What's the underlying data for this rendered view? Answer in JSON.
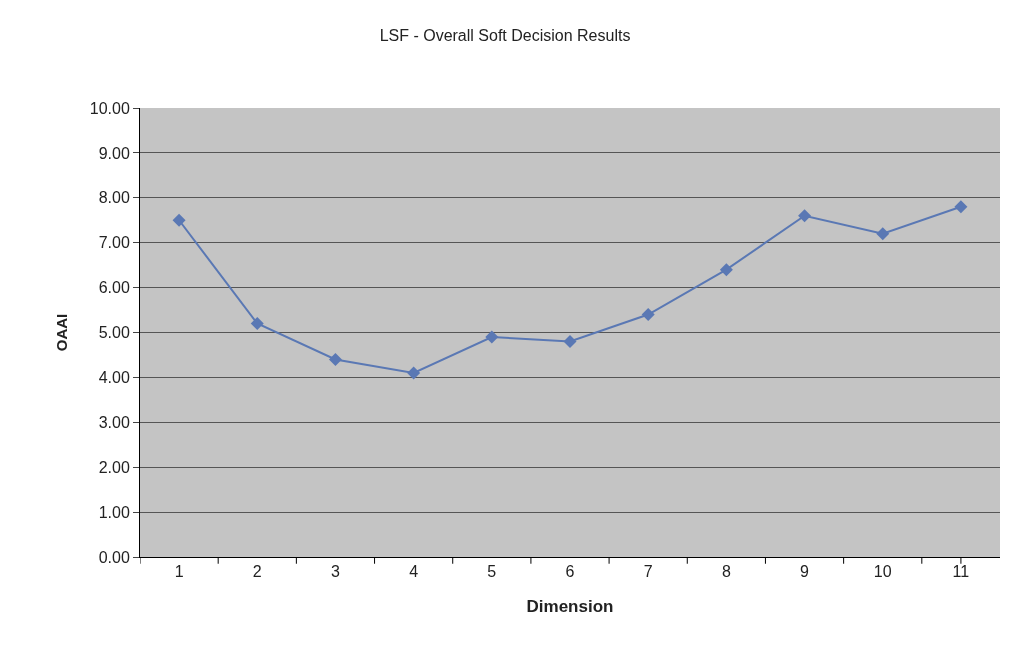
{
  "chart_data": {
    "type": "line",
    "title": "LSF - Overall Soft Decision Results",
    "xlabel": "Dimension",
    "ylabel": "OAAI",
    "categories": [
      "1",
      "2",
      "3",
      "4",
      "5",
      "6",
      "7",
      "8",
      "9",
      "10",
      "11"
    ],
    "series": [
      {
        "color": "#5a78b4",
        "values": [
          7.5,
          5.2,
          4.4,
          4.1,
          4.9,
          4.8,
          5.4,
          6.4,
          7.6,
          7.2,
          7.8
        ]
      }
    ],
    "ylim": [
      0,
      10
    ],
    "yticks": [
      {
        "value": 0,
        "label": "0.00"
      },
      {
        "value": 1,
        "label": "1.00"
      },
      {
        "value": 2,
        "label": "2.00"
      },
      {
        "value": 3,
        "label": "3.00"
      },
      {
        "value": 4,
        "label": "4.00"
      },
      {
        "value": 5,
        "label": "5.00"
      },
      {
        "value": 6,
        "label": "6.00"
      },
      {
        "value": 7,
        "label": "7.00"
      },
      {
        "value": 8,
        "label": "8.00"
      },
      {
        "value": 9,
        "label": "9.00"
      },
      {
        "value": 10,
        "label": "10.00"
      }
    ],
    "grid": "y",
    "marker": "diamond",
    "line_style": "solid"
  }
}
